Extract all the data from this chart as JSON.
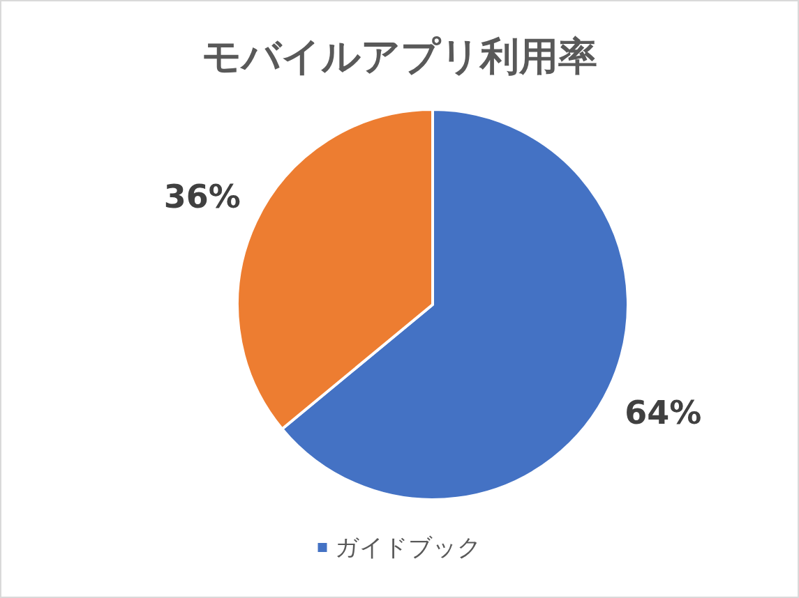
{
  "chart_data": {
    "type": "pie",
    "title": "モバイルアプリ利用率",
    "categories": [
      "ガイドブック",
      null
    ],
    "values": [
      64,
      36
    ],
    "colors": [
      "#4472c4",
      "#ed7d31"
    ],
    "value_labels": [
      "64%",
      "36%"
    ],
    "legend": "bottom"
  }
}
